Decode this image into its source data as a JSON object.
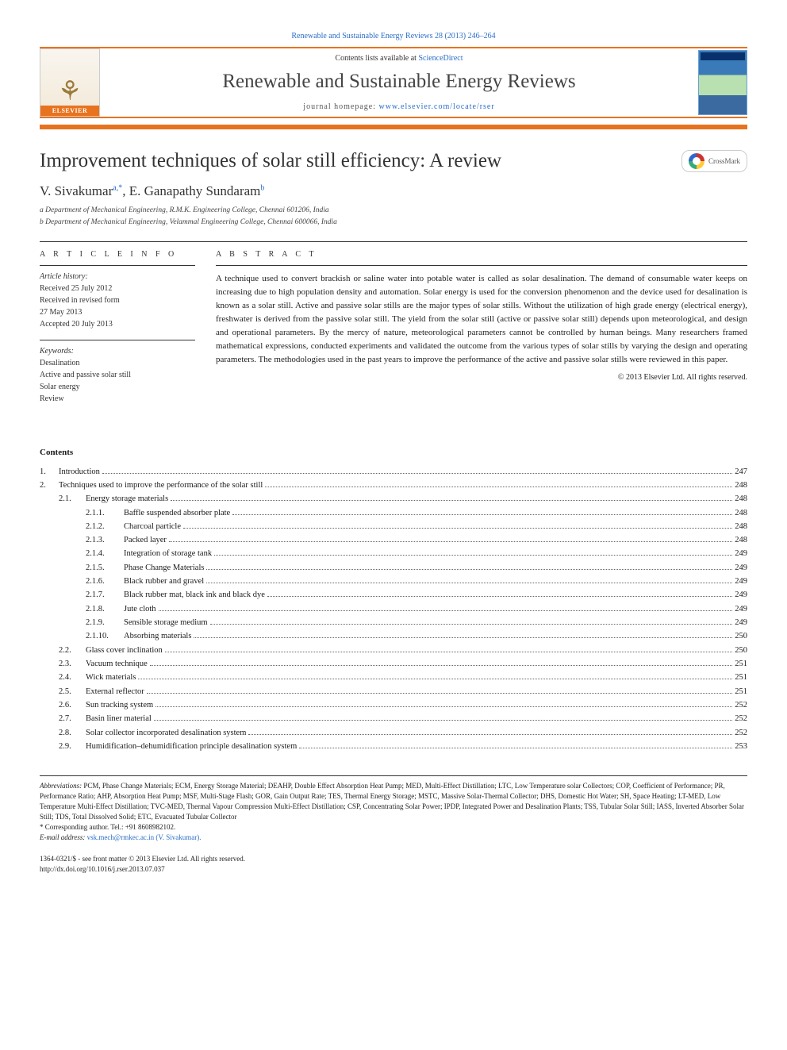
{
  "top_link": {
    "pre": "",
    "journal_link": "Renewable and Sustainable Energy Reviews 28 (2013) 246–264",
    "link_color": "#2a6ec6"
  },
  "header": {
    "contents_line_pre": "Contents lists available at ",
    "contents_line_link": "ScienceDirect",
    "journal_name": "Renewable and Sustainable Energy Reviews",
    "homepage_pre": "journal homepage: ",
    "homepage_link": "www.elsevier.com/locate/rser",
    "elsevier_label": "ELSEVIER"
  },
  "crossmark_label": "CrossMark",
  "title": "Improvement techniques of solar still efficiency: A review",
  "authors_html": {
    "a1_name": "V. Sivakumar",
    "a1_sup": "a,",
    "a1_star": "*",
    "sep": ", ",
    "a2_name": "E. Ganapathy Sundaram",
    "a2_sup": "b"
  },
  "affiliations": [
    "a Department of Mechanical Engineering, R.M.K. Engineering College, Chennai 601206, India",
    "b Department of Mechanical Engineering, Velammal Engineering College, Chennai 600066, India"
  ],
  "article_info": {
    "head": "A R T I C L E  I N F O",
    "history_label": "Article history:",
    "history": [
      "Received 25 July 2012",
      "Received in revised form",
      "27 May 2013",
      "Accepted 20 July 2013"
    ],
    "keywords_label": "Keywords:",
    "keywords": [
      "Desalination",
      "Active and passive solar still",
      "Solar energy",
      "Review"
    ]
  },
  "abstract": {
    "head": "A B S T R A C T",
    "text": "A technique used to convert brackish or saline water into potable water is called as solar desalination. The demand of consumable water keeps on increasing due to high population density and automation. Solar energy is used for the conversion phenomenon and the device used for desalination is known as a solar still. Active and passive solar stills are the major types of solar stills. Without the utilization of high grade energy (electrical energy), freshwater is derived from the passive solar still. The yield from the solar still (active or passive solar still) depends upon meteorological, and design and operational parameters. By the mercy of nature, meteorological parameters cannot be controlled by human beings. Many researchers framed mathematical expressions, conducted experiments and validated the outcome from the various types of solar stills by varying the design and operating parameters. The methodologies used in the past years to improve the performance of the active and passive solar stills were reviewed in this paper.",
    "copyright": "© 2013 Elsevier Ltd. All rights reserved."
  },
  "contents_head": "Contents",
  "toc": [
    {
      "level": 1,
      "num": "1.",
      "label": "Introduction",
      "page": "247"
    },
    {
      "level": 1,
      "num": "2.",
      "label": "Techniques used to improve the performance of the solar still",
      "page": "248"
    },
    {
      "level": 2,
      "num": "2.1.",
      "label": "Energy storage materials",
      "page": "248"
    },
    {
      "level": 3,
      "num": "2.1.1.",
      "label": "Baffle suspended absorber plate",
      "page": "248"
    },
    {
      "level": 3,
      "num": "2.1.2.",
      "label": "Charcoal particle",
      "page": "248"
    },
    {
      "level": 3,
      "num": "2.1.3.",
      "label": "Packed layer",
      "page": "248"
    },
    {
      "level": 3,
      "num": "2.1.4.",
      "label": "Integration of storage tank",
      "page": "249"
    },
    {
      "level": 3,
      "num": "2.1.5.",
      "label": "Phase Change Materials",
      "page": "249"
    },
    {
      "level": 3,
      "num": "2.1.6.",
      "label": "Black rubber and gravel",
      "page": "249"
    },
    {
      "level": 3,
      "num": "2.1.7.",
      "label": "Black rubber mat, black ink and black dye",
      "page": "249"
    },
    {
      "level": 3,
      "num": "2.1.8.",
      "label": "Jute cloth",
      "page": "249"
    },
    {
      "level": 3,
      "num": "2.1.9.",
      "label": "Sensible storage medium",
      "page": "249"
    },
    {
      "level": 3,
      "num": "2.1.10.",
      "label": "Absorbing materials",
      "page": "250"
    },
    {
      "level": 2,
      "num": "2.2.",
      "label": "Glass cover inclination",
      "page": "250"
    },
    {
      "level": 2,
      "num": "2.3.",
      "label": "Vacuum technique",
      "page": "251"
    },
    {
      "level": 2,
      "num": "2.4.",
      "label": "Wick materials",
      "page": "251"
    },
    {
      "level": 2,
      "num": "2.5.",
      "label": "External reflector",
      "page": "251"
    },
    {
      "level": 2,
      "num": "2.6.",
      "label": "Sun tracking system",
      "page": "252"
    },
    {
      "level": 2,
      "num": "2.7.",
      "label": "Basin liner material",
      "page": "252"
    },
    {
      "level": 2,
      "num": "2.8.",
      "label": "Solar collector incorporated desalination system",
      "page": "252"
    },
    {
      "level": 2,
      "num": "2.9.",
      "label": "Humidification–dehumidification principle desalination system",
      "page": "253"
    }
  ],
  "footnotes": {
    "abbr_label": "Abbreviations:",
    "abbr_text": " PCM, Phase Change Materials; ECM, Energy Storage Material; DEAHP, Double Effect Absorption Heat Pump; MED, Multi-Effect Distillation; LTC, Low Temperature solar Collectors; COP, Coefficient of Performance; PR, Performance Ratio; AHP, Absorption Heat Pump; MSF, Multi-Stage Flash; GOR, Gain Output Rate; TES, Thermal Energy Storage; MSTC, Massive Solar-Thermal Collector; DHS, Domestic Hot Water; SH, Space Heating; LT-MED, Low Temperature Multi-Effect Distillation; TVC-MED, Thermal Vapour Compression Multi-Effect Distillation; CSP, Concentrating Solar Power; IPDP, Integrated Power and Desalination Plants; TSS, Tubular Solar Still; IASS, Inverted Absorber Solar Still; TDS, Total Dissolved Solid; ETC, Evacuated Tubular Collector",
    "corr": "* Corresponding author. Tel.: +91 8608982102.",
    "email_label": "E-mail address: ",
    "email": "vsk.mech@rmkec.ac.in (V. Sivakumar)."
  },
  "bottom": {
    "issn": "1364-0321/$ - see front matter © 2013 Elsevier Ltd. All rights reserved.",
    "doi": "http://dx.doi.org/10.1016/j.rser.2013.07.037"
  },
  "colors": {
    "accent": "#e8731f",
    "link": "#2a6ec6"
  }
}
